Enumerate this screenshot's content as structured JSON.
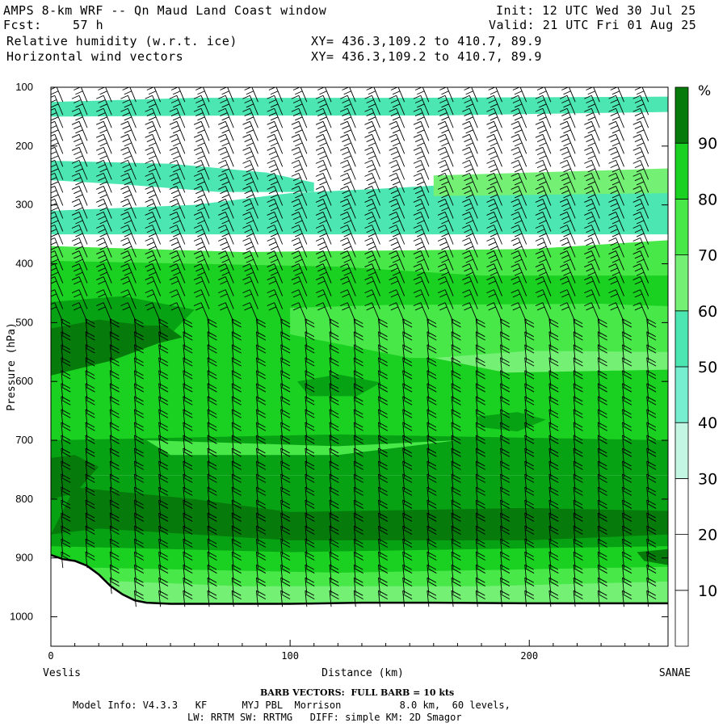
{
  "header": {
    "model_title": "AMPS 8-km WRF -- Qn Maud Land Coast window",
    "forecast_label": "Fcst:",
    "forecast_hours": "57 h",
    "init": "Init: 12 UTC Wed 30 Jul 25",
    "valid": "Valid: 21 UTC Fri 01 Aug 25",
    "field1": "Relative humidity (w.r.t. ice)",
    "field2": "Horizontal wind vectors",
    "xy1": "XY= 436.3,109.2 to 410.7, 89.9",
    "xy2": "XY= 436.3,109.2 to 410.7, 89.9"
  },
  "chart_data": {
    "type": "heatmap",
    "title": "Relative humidity (w.r.t. ice)",
    "xlabel": "Distance (km)",
    "ylabel": "Pressure (hPa)",
    "xlim": [
      0,
      258
    ],
    "ylim": [
      1050,
      100
    ],
    "x_ticks": [
      0,
      100,
      200
    ],
    "y_ticks": [
      100,
      200,
      300,
      400,
      500,
      600,
      700,
      800,
      900,
      1000
    ],
    "x_end_labels": {
      "left": "Veslis",
      "right": "SANAE"
    },
    "colorbar": {
      "unit": "%",
      "levels": [
        10,
        20,
        30,
        40,
        50,
        60,
        70,
        80,
        90
      ],
      "colors": [
        "#ffffff",
        "#ffffff",
        "#ffffff",
        "#c4f6e4",
        "#78eed0",
        "#4ce6b2",
        "#74f074",
        "#48e848",
        "#1ad020",
        "#07a214",
        "#067a0a"
      ]
    },
    "surface_pressure": {
      "x": [
        0,
        5,
        10,
        15,
        20,
        25,
        30,
        35,
        40,
        50,
        60,
        80,
        100,
        130,
        160,
        200,
        258
      ],
      "p": [
        895,
        902,
        905,
        913,
        928,
        948,
        962,
        972,
        976,
        978,
        978,
        978,
        978,
        976,
        976,
        977,
        977
      ]
    },
    "rh_bands": [
      {
        "level": 40,
        "points": [
          [
            0,
            125
          ],
          [
            60,
            118
          ],
          [
            150,
            118
          ],
          [
            258,
            116
          ],
          [
            258,
            142
          ],
          [
            160,
            148
          ],
          [
            80,
            148
          ],
          [
            0,
            150
          ]
        ]
      },
      {
        "level": 40,
        "points": [
          [
            0,
            225
          ],
          [
            50,
            230
          ],
          [
            90,
            245
          ],
          [
            110,
            262
          ],
          [
            110,
            278
          ],
          [
            70,
            278
          ],
          [
            30,
            265
          ],
          [
            0,
            258
          ]
        ]
      },
      {
        "level": 40,
        "points": [
          [
            100,
            280
          ],
          [
            140,
            272
          ],
          [
            200,
            258
          ],
          [
            258,
            252
          ],
          [
            258,
            350
          ],
          [
            0,
            350
          ],
          [
            0,
            310
          ],
          [
            60,
            300
          ]
        ]
      },
      {
        "level": 50,
        "points": [
          [
            160,
            250
          ],
          [
            258,
            238
          ],
          [
            258,
            280
          ],
          [
            160,
            285
          ]
        ]
      },
      {
        "level": 60,
        "points": [
          [
            0,
            370
          ],
          [
            80,
            380
          ],
          [
            200,
            375
          ],
          [
            258,
            360
          ],
          [
            258,
            480
          ],
          [
            230,
            450
          ],
          [
            150,
            440
          ],
          [
            0,
            440
          ]
        ]
      },
      {
        "level": 70,
        "points": [
          [
            0,
            395
          ],
          [
            120,
            405
          ],
          [
            180,
            420
          ],
          [
            258,
            420
          ],
          [
            258,
            700
          ],
          [
            0,
            700
          ]
        ]
      },
      {
        "level": 60,
        "points": [
          [
            100,
            475
          ],
          [
            140,
            470
          ],
          [
            230,
            468
          ],
          [
            258,
            472
          ],
          [
            258,
            560
          ],
          [
            150,
            560
          ],
          [
            100,
            520
          ]
        ]
      },
      {
        "level": 50,
        "points": [
          [
            160,
            560
          ],
          [
            200,
            548
          ],
          [
            258,
            550
          ],
          [
            258,
            580
          ],
          [
            190,
            585
          ]
        ]
      },
      {
        "level": 80,
        "points": [
          [
            0,
            465
          ],
          [
            30,
            455
          ],
          [
            60,
            478
          ],
          [
            50,
            520
          ],
          [
            20,
            560
          ],
          [
            0,
            570
          ]
        ]
      },
      {
        "level": 90,
        "points": [
          [
            0,
            510
          ],
          [
            20,
            495
          ],
          [
            40,
            505
          ],
          [
            45,
            535
          ],
          [
            25,
            565
          ],
          [
            0,
            590
          ]
        ]
      },
      {
        "level": 90,
        "points": [
          [
            28,
            505
          ],
          [
            48,
            505
          ],
          [
            55,
            525
          ],
          [
            40,
            540
          ],
          [
            28,
            525
          ]
        ]
      },
      {
        "level": 80,
        "points": [
          [
            103,
            600
          ],
          [
            120,
            588
          ],
          [
            138,
            602
          ],
          [
            128,
            625
          ],
          [
            108,
            625
          ]
        ]
      },
      {
        "level": 80,
        "points": [
          [
            178,
            660
          ],
          [
            195,
            652
          ],
          [
            207,
            665
          ],
          [
            195,
            685
          ],
          [
            180,
            678
          ]
        ]
      },
      {
        "level": 80,
        "points": [
          [
            0,
            700
          ],
          [
            120,
            690
          ],
          [
            258,
            700
          ],
          [
            258,
            760
          ],
          [
            0,
            760
          ]
        ]
      },
      {
        "level": 60,
        "points": [
          [
            40,
            700
          ],
          [
            120,
            710
          ],
          [
            170,
            700
          ],
          [
            120,
            725
          ],
          [
            50,
            725
          ]
        ]
      },
      {
        "level": 80,
        "points": [
          [
            0,
            760
          ],
          [
            258,
            760
          ],
          [
            258,
            890
          ],
          [
            0,
            890
          ]
        ]
      },
      {
        "level": 90,
        "points": [
          [
            0,
            730
          ],
          [
            10,
            725
          ],
          [
            20,
            745
          ],
          [
            10,
            790
          ],
          [
            0,
            800
          ]
        ]
      },
      {
        "level": 90,
        "points": [
          [
            10,
            780
          ],
          [
            60,
            800
          ],
          [
            100,
            822
          ],
          [
            200,
            815
          ],
          [
            258,
            820
          ],
          [
            258,
            860
          ],
          [
            200,
            870
          ],
          [
            100,
            870
          ],
          [
            20,
            850
          ],
          [
            0,
            860
          ]
        ]
      },
      {
        "level": 90,
        "points": [
          [
            110,
            822
          ],
          [
            200,
            825
          ],
          [
            220,
            845
          ],
          [
            200,
            858
          ],
          [
            110,
            858
          ]
        ]
      },
      {
        "level": 70,
        "points": [
          [
            0,
            880
          ],
          [
            100,
            890
          ],
          [
            258,
            880
          ],
          [
            258,
            935
          ],
          [
            0,
            935
          ]
        ]
      },
      {
        "level": 60,
        "points": [
          [
            0,
            915
          ],
          [
            120,
            925
          ],
          [
            258,
            915
          ],
          [
            258,
            960
          ],
          [
            0,
            960
          ]
        ]
      },
      {
        "level": 50,
        "points": [
          [
            0,
            935
          ],
          [
            80,
            948
          ],
          [
            180,
            948
          ],
          [
            258,
            940
          ],
          [
            258,
            978
          ],
          [
            0,
            978
          ]
        ]
      },
      {
        "level": 90,
        "points": [
          [
            245,
            890
          ],
          [
            258,
            885
          ],
          [
            258,
            912
          ],
          [
            248,
            905
          ]
        ]
      }
    ]
  },
  "footer": {
    "barb_note": "BARB VECTORS:  FULL BARB = 10 kts",
    "model_info": "Model Info: V4.3.3   KF      MYJ PBL  Morrison          8.0 km,  60 levels,",
    "physics": "LW: RRTM SW: RRTMG   DIFF: simple KM: 2D Smagor"
  }
}
